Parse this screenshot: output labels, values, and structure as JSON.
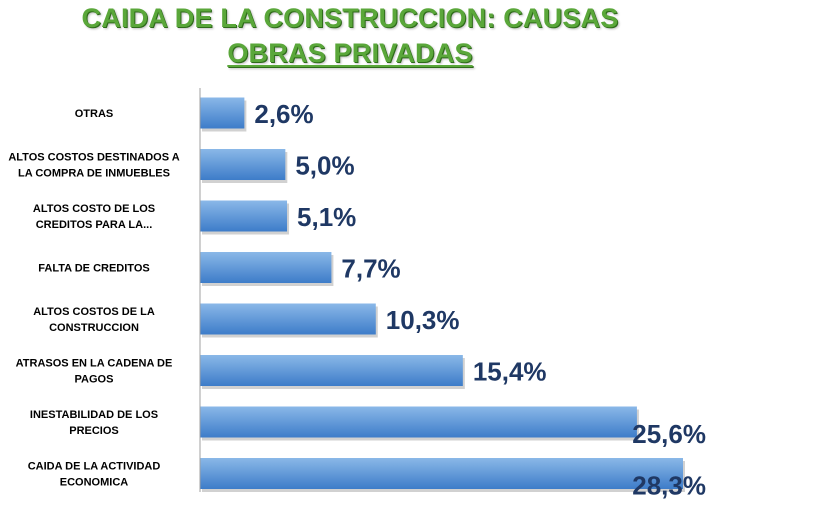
{
  "header": {
    "title_line1": "CAIDA DE LA CONSTRUCCION: CAUSAS",
    "title_line2": "OBRAS PRIVADAS"
  },
  "colors": {
    "title": "#5aa73a",
    "bar_top": "#8ab8e8",
    "bar_bottom": "#3d7cc9",
    "value_label": "#1f3864",
    "axis": "#a0a0a0"
  },
  "chart_data": {
    "type": "bar",
    "orientation": "horizontal",
    "title": "CAIDA DE LA CONSTRUCCION: CAUSAS OBRAS PRIVADAS",
    "categories": [
      [
        "OTRAS"
      ],
      [
        "ALTOS COSTOS DESTINADOS A",
        "LA COMPRA DE INMUEBLES"
      ],
      [
        "ALTOS COSTO DE LOS",
        "CREDITOS PARA LA..."
      ],
      [
        "FALTA DE CREDITOS"
      ],
      [
        "ALTOS COSTOS DE LA",
        "CONSTRUCCION"
      ],
      [
        "ATRASOS EN LA CADENA DE",
        "PAGOS"
      ],
      [
        "INESTABILIDAD DE LOS",
        "PRECIOS"
      ],
      [
        "CAIDA DE LA ACTIVIDAD",
        "ECONOMICA"
      ]
    ],
    "values": [
      2.6,
      5.0,
      5.1,
      7.7,
      10.3,
      15.4,
      25.6,
      28.3
    ],
    "value_labels": [
      "2,6%",
      "5,0%",
      "5,1%",
      "7,7%",
      "10,3%",
      "15,4%",
      "25,6%",
      "28,3%"
    ],
    "xlim": [
      0,
      28.3
    ],
    "grid": false,
    "legend": "none"
  }
}
